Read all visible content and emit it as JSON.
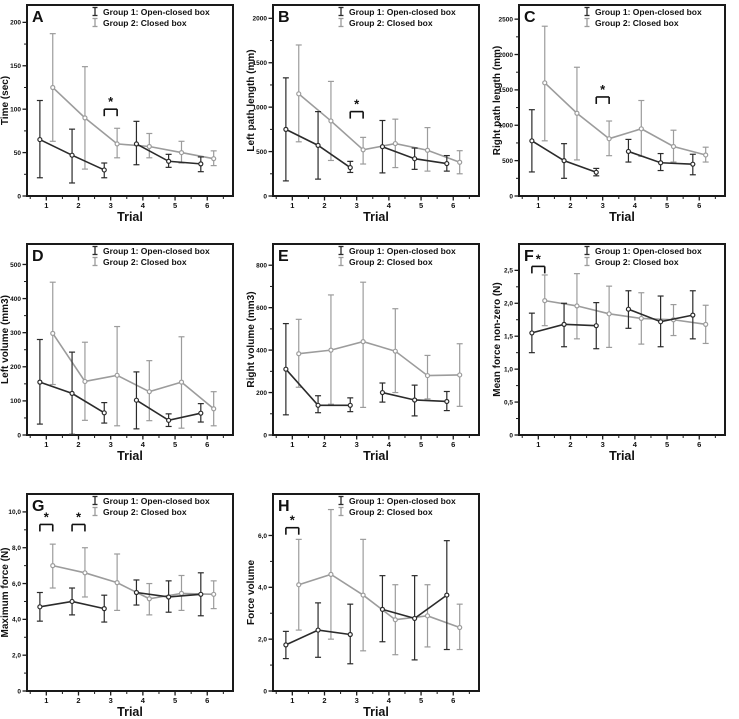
{
  "figure_title": "",
  "xlabel": "Trial",
  "x_tick_labels": [
    "1",
    "2",
    "3",
    "4",
    "5",
    "6"
  ],
  "colors": {
    "group1": "#2b2b2b",
    "group2": "#9c9c9c",
    "border": "#1a1a1a"
  },
  "legend": {
    "entries": [
      {
        "label": "Group 1: Open-closed box",
        "color_key": "group1",
        "glyph": "errorbar-icon"
      },
      {
        "label": "Group 2: Closed box",
        "color_key": "group2",
        "glyph": "errorbar-icon"
      }
    ]
  },
  "chart_data": [
    {
      "panel": "A",
      "type": "line",
      "ylabel": "Time (sec)",
      "xlabel": "Trial",
      "ytick_values": [
        0,
        50,
        100,
        150,
        200
      ],
      "ytick_labels": [
        "0",
        "50",
        "100",
        "150",
        "200"
      ],
      "ylim": [
        0,
        220
      ],
      "x": [
        1,
        2,
        3,
        4,
        5,
        6
      ],
      "grid": false,
      "legend_position": "top-right",
      "series": [
        {
          "name": "Group 1: Open-closed box",
          "color_key": "group1",
          "values": [
            65,
            47,
            30,
            60,
            40,
            37
          ],
          "err_low": [
            21,
            15,
            21,
            36,
            33,
            28
          ],
          "err_high": [
            110,
            77,
            38,
            86,
            48,
            45
          ],
          "segments": [
            [
              0,
              1,
              2
            ],
            [
              3,
              4,
              5
            ]
          ]
        },
        {
          "name": "Group 2: Closed box",
          "color_key": "group2",
          "values": [
            125,
            90,
            60,
            57,
            50,
            43
          ],
          "err_low": [
            63,
            31,
            44,
            44,
            38,
            35
          ],
          "err_high": [
            187,
            149,
            78,
            72,
            63,
            52
          ],
          "segments": [
            [
              0,
              1,
              2,
              3,
              4,
              5
            ]
          ]
        }
      ],
      "significance": [
        {
          "x1": 2.8,
          "x2": 3.2,
          "y": 100,
          "label": "*"
        }
      ]
    },
    {
      "panel": "B",
      "type": "line",
      "ylabel": "Left path length (mm)",
      "xlabel": "Trial",
      "ytick_values": [
        0,
        500,
        1000,
        1500,
        2000
      ],
      "ytick_labels": [
        "0",
        "500",
        "1000",
        "1500",
        "2000"
      ],
      "ylim": [
        0,
        2150
      ],
      "x": [
        1,
        2,
        3,
        4,
        5,
        6
      ],
      "grid": false,
      "legend_position": "top-right",
      "series": [
        {
          "name": "Group 1: Open-closed box",
          "color_key": "group1",
          "values": [
            750,
            570,
            320,
            555,
            420,
            365
          ],
          "err_low": [
            170,
            190,
            265,
            260,
            300,
            280
          ],
          "err_high": [
            1330,
            950,
            390,
            850,
            540,
            455
          ],
          "segments": [
            [
              0,
              1,
              2
            ],
            [
              3,
              4,
              5
            ]
          ]
        },
        {
          "name": "Group 2: Closed box",
          "color_key": "group2",
          "values": [
            1150,
            845,
            520,
            590,
            515,
            380
          ],
          "err_low": [
            610,
            400,
            360,
            320,
            280,
            250
          ],
          "err_high": [
            1700,
            1290,
            660,
            865,
            770,
            510
          ],
          "segments": [
            [
              0,
              1,
              2,
              3,
              4,
              5
            ]
          ]
        }
      ],
      "significance": [
        {
          "x1": 2.8,
          "x2": 3.2,
          "y": 950,
          "label": "*"
        }
      ]
    },
    {
      "panel": "C",
      "type": "line",
      "ylabel": "Right path length (mm)",
      "xlabel": "Trial",
      "ytick_values": [
        0,
        500,
        1000,
        1500,
        2000,
        2500
      ],
      "ytick_labels": [
        "0",
        "500",
        "1000",
        "1500",
        "2000",
        "2500"
      ],
      "ylim": [
        0,
        2700
      ],
      "x": [
        1,
        2,
        3,
        4,
        5,
        6
      ],
      "grid": false,
      "legend_position": "top-right",
      "series": [
        {
          "name": "Group 1: Open-closed box",
          "color_key": "group1",
          "values": [
            780,
            500,
            335,
            630,
            470,
            450
          ],
          "err_low": [
            340,
            250,
            285,
            480,
            360,
            300
          ],
          "err_high": [
            1220,
            740,
            390,
            800,
            600,
            590
          ],
          "segments": [
            [
              0,
              1,
              2
            ],
            [
              3,
              4,
              5
            ]
          ]
        },
        {
          "name": "Group 2: Closed box",
          "color_key": "group2",
          "values": [
            1600,
            1170,
            810,
            950,
            700,
            580
          ],
          "err_low": [
            780,
            510,
            570,
            560,
            480,
            480
          ],
          "err_high": [
            2400,
            1820,
            1060,
            1350,
            930,
            690
          ],
          "segments": [
            [
              0,
              1,
              2,
              3,
              4,
              5
            ]
          ]
        }
      ],
      "significance": [
        {
          "x1": 2.8,
          "x2": 3.2,
          "y": 1400,
          "label": "*"
        }
      ]
    },
    {
      "panel": "D",
      "type": "line",
      "ylabel": "Left volume (mm3)",
      "xlabel": "Trial",
      "ytick_values": [
        0,
        100,
        200,
        300,
        400,
        500
      ],
      "ytick_labels": [
        "0",
        "100",
        "200",
        "300",
        "400",
        "500"
      ],
      "ylim": [
        0,
        560
      ],
      "x": [
        1,
        2,
        3,
        4,
        5,
        6
      ],
      "grid": false,
      "legend_position": "top-right",
      "series": [
        {
          "name": "Group 1: Open-closed box",
          "color_key": "group1",
          "values": [
            155,
            122,
            65,
            102,
            43,
            64
          ],
          "err_low": [
            32,
            2,
            35,
            18,
            25,
            38
          ],
          "err_high": [
            280,
            243,
            95,
            185,
            62,
            92
          ],
          "segments": [
            [
              0,
              1,
              2
            ],
            [
              3,
              4,
              5
            ]
          ]
        },
        {
          "name": "Group 2: Closed box",
          "color_key": "group2",
          "values": [
            298,
            157,
            175,
            127,
            155,
            77
          ],
          "err_low": [
            148,
            43,
            27,
            42,
            20,
            27
          ],
          "err_high": [
            448,
            272,
            318,
            218,
            288,
            127
          ],
          "segments": [
            [
              0,
              1,
              2,
              3,
              4,
              5
            ]
          ]
        }
      ],
      "significance": []
    },
    {
      "panel": "E",
      "type": "line",
      "ylabel": "Right volume (mm3)",
      "xlabel": "Trial",
      "ytick_values": [
        0,
        200,
        400,
        600,
        800
      ],
      "ytick_labels": [
        "0",
        "200",
        "400",
        "600",
        "800"
      ],
      "ylim": [
        0,
        900
      ],
      "x": [
        1,
        2,
        3,
        4,
        5,
        6
      ],
      "grid": false,
      "legend_position": "top-right",
      "series": [
        {
          "name": "Group 1: Open-closed box",
          "color_key": "group1",
          "values": [
            310,
            140,
            140,
            200,
            165,
            158
          ],
          "err_low": [
            95,
            105,
            110,
            155,
            90,
            115
          ],
          "err_high": [
            525,
            185,
            175,
            245,
            235,
            205
          ],
          "segments": [
            [
              0,
              1,
              2
            ],
            [
              3,
              4,
              5
            ]
          ]
        },
        {
          "name": "Group 2: Closed box",
          "color_key": "group2",
          "values": [
            383,
            400,
            440,
            395,
            280,
            283
          ],
          "err_low": [
            225,
            145,
            130,
            200,
            170,
            135
          ],
          "err_high": [
            545,
            660,
            720,
            595,
            375,
            430
          ],
          "segments": [
            [
              0,
              1,
              2,
              3,
              4,
              5
            ]
          ]
        }
      ],
      "significance": []
    },
    {
      "panel": "F",
      "type": "line",
      "ylabel": "Mean force non-zero (N)",
      "xlabel": "Trial",
      "ytick_values": [
        0,
        0.5,
        1,
        1.5,
        2,
        2.5
      ],
      "ytick_labels": [
        "0",
        "0,5",
        "1,0",
        "1,5",
        "2,0",
        "2,5"
      ],
      "ylim": [
        0,
        2.9
      ],
      "x": [
        1,
        2,
        3,
        4,
        5,
        6
      ],
      "grid": false,
      "legend_position": "top-right",
      "series": [
        {
          "name": "Group 1: Open-closed box",
          "color_key": "group1",
          "values": [
            1.55,
            1.68,
            1.66,
            1.91,
            1.72,
            1.82
          ],
          "err_low": [
            1.25,
            1.34,
            1.31,
            1.62,
            1.34,
            1.46
          ],
          "err_high": [
            1.85,
            2.0,
            2.01,
            2.19,
            2.11,
            2.19
          ],
          "segments": [
            [
              0,
              1,
              2
            ],
            [
              3,
              4,
              5
            ]
          ]
        },
        {
          "name": "Group 2: Closed box",
          "color_key": "group2",
          "values": [
            2.04,
            1.96,
            1.84,
            1.77,
            1.75,
            1.68
          ],
          "err_low": [
            1.66,
            1.46,
            1.33,
            1.38,
            1.51,
            1.39
          ],
          "err_high": [
            2.43,
            2.45,
            2.26,
            2.16,
            1.98,
            1.97
          ],
          "segments": [
            [
              0,
              1,
              2,
              3,
              4,
              5
            ]
          ]
        }
      ],
      "significance": [
        {
          "x1": 0.8,
          "x2": 1.2,
          "y": 2.56,
          "label": "*"
        }
      ]
    },
    {
      "panel": "G",
      "type": "line",
      "ylabel": "Maximum force (N)",
      "xlabel": "Trial",
      "ytick_values": [
        0,
        2,
        4,
        6,
        8,
        10
      ],
      "ytick_labels": [
        "0",
        "2,0",
        "4,0",
        "6,0",
        "8,0",
        "10,0"
      ],
      "ylim": [
        0,
        11
      ],
      "x": [
        1,
        2,
        3,
        4,
        5,
        6
      ],
      "grid": false,
      "legend_position": "top-right",
      "series": [
        {
          "name": "Group 1: Open-closed box",
          "color_key": "group1",
          "values": [
            4.7,
            5.0,
            4.6,
            5.5,
            5.25,
            5.4
          ],
          "err_low": [
            3.9,
            4.25,
            3.85,
            4.8,
            4.4,
            4.2
          ],
          "err_high": [
            5.5,
            5.75,
            5.35,
            6.2,
            6.15,
            6.6
          ],
          "segments": [
            [
              0,
              1,
              2
            ],
            [
              3,
              4,
              5
            ]
          ]
        },
        {
          "name": "Group 2: Closed box",
          "color_key": "group2",
          "values": [
            7.0,
            6.6,
            6.05,
            5.15,
            5.45,
            5.4
          ],
          "err_low": [
            5.75,
            5.25,
            4.5,
            4.25,
            4.5,
            4.6
          ],
          "err_high": [
            8.2,
            8.0,
            7.65,
            6.0,
            6.45,
            6.15
          ],
          "segments": [
            [
              0,
              1,
              2,
              3,
              4,
              5
            ]
          ]
        }
      ],
      "significance": [
        {
          "x1": 0.8,
          "x2": 1.2,
          "y": 9.3,
          "label": "*"
        },
        {
          "x1": 1.8,
          "x2": 2.2,
          "y": 9.3,
          "label": "*"
        }
      ]
    },
    {
      "panel": "H",
      "type": "line",
      "ylabel": "Force volume",
      "xlabel": "Trial",
      "ytick_values": [
        0,
        2,
        4,
        6
      ],
      "ytick_labels": [
        "0",
        "2,0",
        "4,0",
        "6,0"
      ],
      "ylim": [
        0,
        7.6
      ],
      "x": [
        1,
        2,
        3,
        4,
        5,
        6
      ],
      "grid": false,
      "legend_position": "top-right",
      "series": [
        {
          "name": "Group 1: Open-closed box",
          "color_key": "group1",
          "values": [
            1.78,
            2.35,
            2.18,
            3.15,
            2.8,
            3.7
          ],
          "err_low": [
            1.25,
            1.3,
            1.05,
            1.9,
            1.2,
            1.6
          ],
          "err_high": [
            2.3,
            3.4,
            3.35,
            4.45,
            4.45,
            5.8
          ],
          "segments": [
            [
              0,
              1,
              2
            ],
            [
              3,
              4,
              5
            ]
          ]
        },
        {
          "name": "Group 2: Closed box",
          "color_key": "group2",
          "values": [
            4.1,
            4.5,
            3.7,
            2.75,
            2.9,
            2.45
          ],
          "err_low": [
            2.35,
            2.0,
            1.55,
            1.4,
            1.7,
            1.6
          ],
          "err_high": [
            5.85,
            7.0,
            5.85,
            4.1,
            4.1,
            3.35
          ],
          "segments": [
            [
              0,
              1,
              2,
              3,
              4,
              5
            ]
          ]
        }
      ],
      "significance": [
        {
          "x1": 0.8,
          "x2": 1.2,
          "y": 6.3,
          "label": "*"
        }
      ]
    }
  ]
}
